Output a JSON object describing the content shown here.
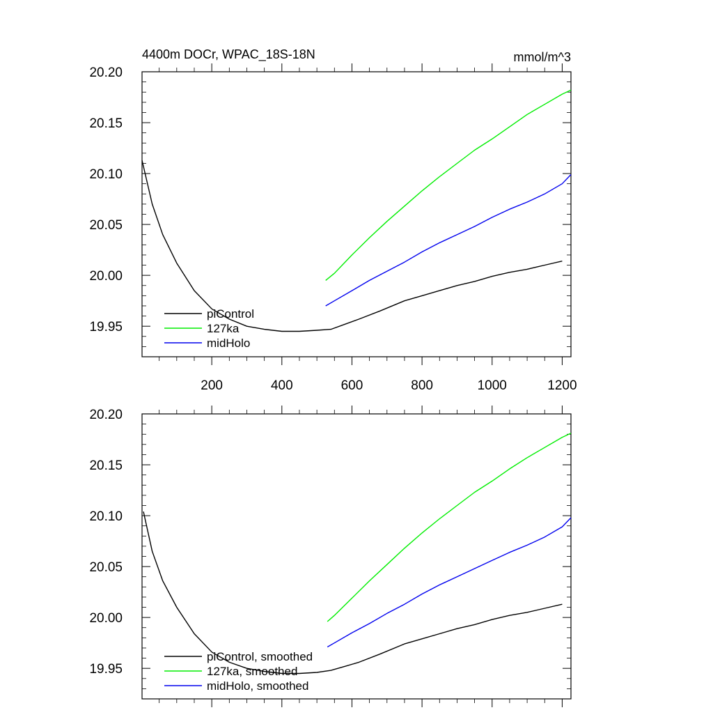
{
  "figure": {
    "title_left": "4400m DOCr, WPAC_18S-18N",
    "title_right": "mmol/m^3"
  },
  "colors": {
    "piControl": "#000000",
    "127ka": "#00ee00",
    "midHolo": "#0000ee"
  },
  "chart_data": [
    {
      "type": "line",
      "panel": "top",
      "xlim": [
        1,
        1225
      ],
      "ylim": [
        19.92,
        20.2
      ],
      "x_ticks": [
        200,
        400,
        600,
        800,
        1000,
        1200
      ],
      "x_tick_labels": [
        "200",
        "400",
        "600",
        "800",
        "1000",
        "1200"
      ],
      "y_ticks": [
        19.95,
        20.0,
        20.05,
        20.1,
        20.15,
        20.2
      ],
      "y_tick_labels": [
        "19.95",
        "20.00",
        "20.05",
        "20.10",
        "20.15",
        "20.20"
      ],
      "legend": [
        "piControl",
        "127ka",
        "midHolo"
      ],
      "series": [
        {
          "name": "piControl",
          "color_key": "piControl",
          "x": [
            1,
            30,
            60,
            100,
            150,
            200,
            250,
            300,
            350,
            400,
            450,
            500,
            540,
            580,
            620,
            680,
            750,
            800,
            850,
            900,
            950,
            1000,
            1050,
            1100,
            1150,
            1200
          ],
          "y": [
            20.113,
            20.07,
            20.04,
            20.012,
            19.985,
            19.967,
            19.957,
            19.95,
            19.947,
            19.945,
            19.945,
            19.946,
            19.947,
            19.952,
            19.957,
            19.965,
            19.975,
            19.98,
            19.985,
            19.99,
            19.994,
            19.999,
            20.003,
            20.006,
            20.01,
            20.014
          ]
        },
        {
          "name": "127ka",
          "color_key": "127ka",
          "x": [
            525,
            550,
            600,
            650,
            700,
            750,
            800,
            850,
            900,
            950,
            1000,
            1050,
            1100,
            1150,
            1200,
            1225
          ],
          "y": [
            19.995,
            20.002,
            20.02,
            20.037,
            20.053,
            20.068,
            20.083,
            20.097,
            20.11,
            20.123,
            20.134,
            20.146,
            20.158,
            20.168,
            20.178,
            20.182
          ]
        },
        {
          "name": "midHolo",
          "color_key": "midHolo",
          "x": [
            525,
            550,
            600,
            650,
            700,
            750,
            800,
            850,
            900,
            950,
            1000,
            1050,
            1100,
            1150,
            1200,
            1225
          ],
          "y": [
            19.97,
            19.975,
            19.985,
            19.995,
            20.004,
            20.013,
            20.023,
            20.032,
            20.04,
            20.048,
            20.057,
            20.065,
            20.072,
            20.08,
            20.09,
            20.099
          ]
        }
      ]
    },
    {
      "type": "line",
      "panel": "bottom",
      "xlim": [
        1,
        1225
      ],
      "ylim": [
        19.92,
        20.2
      ],
      "x_ticks": [
        200,
        400,
        600,
        800,
        1000,
        1200
      ],
      "x_tick_labels": [
        "",
        "",
        "",
        "",
        "",
        ""
      ],
      "y_ticks": [
        19.95,
        20.0,
        20.05,
        20.1,
        20.15,
        20.2
      ],
      "y_tick_labels": [
        "19.95",
        "20.00",
        "20.05",
        "20.10",
        "20.15",
        "20.20"
      ],
      "legend": [
        "piControl, smoothed",
        "127ka, smoothed",
        "midHolo, smoothed"
      ],
      "series": [
        {
          "name": "piControl, smoothed",
          "color_key": "piControl",
          "x": [
            5,
            30,
            60,
            100,
            150,
            200,
            250,
            300,
            350,
            400,
            450,
            500,
            540,
            580,
            620,
            680,
            750,
            800,
            850,
            900,
            950,
            1000,
            1050,
            1100,
            1150,
            1200
          ],
          "y": [
            20.104,
            20.065,
            20.036,
            20.01,
            19.984,
            19.966,
            19.956,
            19.95,
            19.947,
            19.945,
            19.945,
            19.946,
            19.948,
            19.952,
            19.956,
            19.964,
            19.974,
            19.979,
            19.984,
            19.989,
            19.993,
            19.998,
            20.002,
            20.005,
            20.009,
            20.013
          ]
        },
        {
          "name": "127ka, smoothed",
          "color_key": "127ka",
          "x": [
            530,
            550,
            600,
            650,
            700,
            750,
            800,
            850,
            900,
            950,
            1000,
            1050,
            1100,
            1150,
            1200,
            1225
          ],
          "y": [
            19.996,
            20.002,
            20.019,
            20.036,
            20.052,
            20.068,
            20.083,
            20.097,
            20.11,
            20.123,
            20.134,
            20.146,
            20.157,
            20.167,
            20.177,
            20.181
          ]
        },
        {
          "name": "midHolo, smoothed",
          "color_key": "midHolo",
          "x": [
            530,
            550,
            600,
            650,
            700,
            750,
            800,
            850,
            900,
            950,
            1000,
            1050,
            1100,
            1150,
            1200,
            1225
          ],
          "y": [
            19.971,
            19.975,
            19.985,
            19.994,
            20.004,
            20.013,
            20.023,
            20.032,
            20.04,
            20.048,
            20.056,
            20.064,
            20.071,
            20.079,
            20.089,
            20.098
          ]
        }
      ]
    }
  ]
}
